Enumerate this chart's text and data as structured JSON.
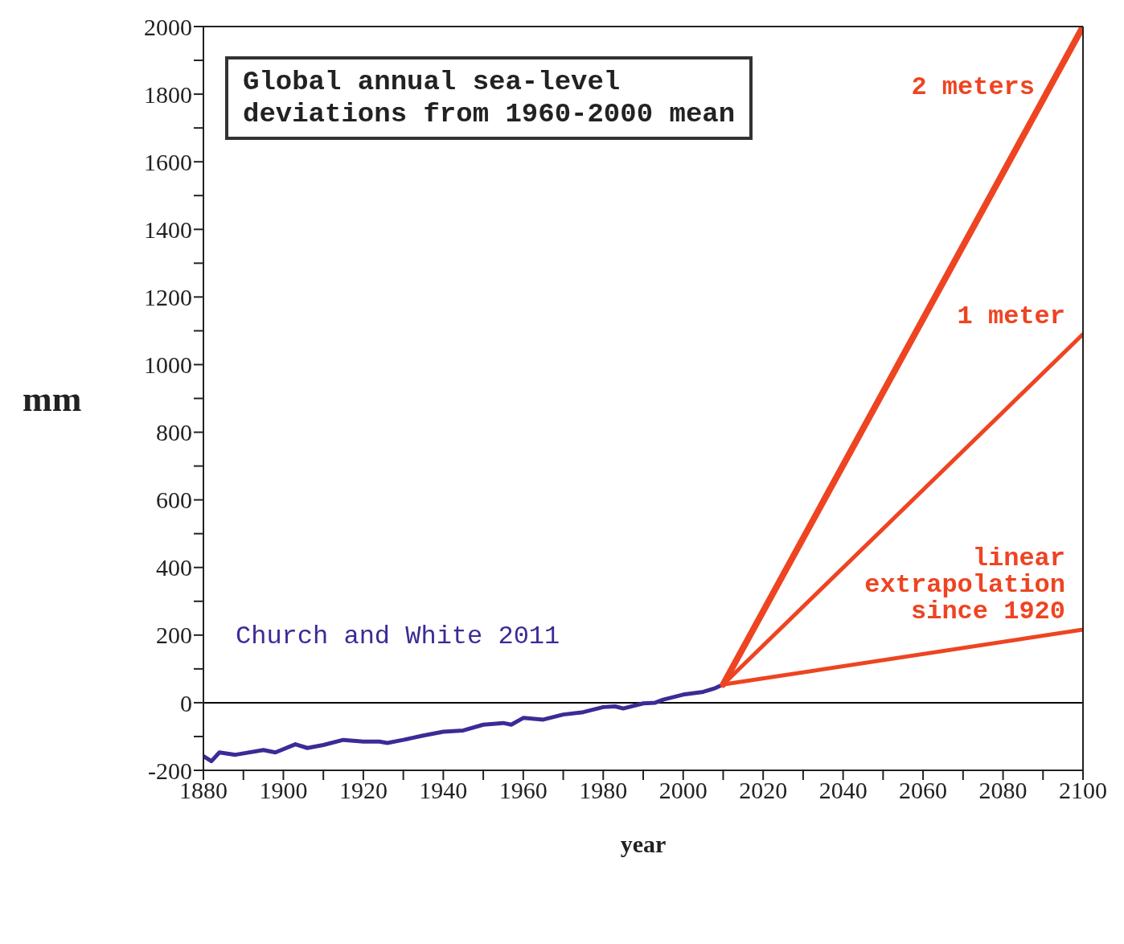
{
  "chart_data": {
    "type": "line",
    "title": "Global annual sea-level\ndeviations from 1960-2000 mean",
    "xlabel": "year",
    "ylabel": "mm",
    "xlim": [
      1880,
      2100
    ],
    "xticks": [
      1880,
      {
        "value": 1890,
        "label": null
      },
      1900,
      {
        "value": 1910,
        "label": null
      },
      1920,
      {
        "value": 1930,
        "label": null
      },
      1940,
      {
        "value": 1950,
        "label": null
      },
      1960,
      {
        "value": 1970,
        "label": null
      },
      1980,
      {
        "value": 1990,
        "label": null
      },
      2000,
      {
        "value": 2010,
        "label": null
      },
      2020,
      {
        "value": 2030,
        "label": null
      },
      2040,
      {
        "value": 2050,
        "label": null
      },
      2060,
      {
        "value": 2070,
        "label": null
      },
      2080,
      {
        "value": 2090,
        "label": null
      },
      2100
    ],
    "ylim": [
      -200,
      2000
    ],
    "yticks": [
      -200,
      {
        "value": -100,
        "label": null
      },
      0,
      {
        "value": 100,
        "label": null
      },
      200,
      {
        "value": 300,
        "label": null
      },
      400,
      {
        "value": 500,
        "label": null
      },
      600,
      {
        "value": 700,
        "label": null
      },
      800,
      {
        "value": 900,
        "label": null
      },
      1000,
      {
        "value": 1100,
        "label": null
      },
      1200,
      {
        "value": 1300,
        "label": null
      },
      1400,
      {
        "value": 1500,
        "label": null
      },
      1600,
      {
        "value": 1700,
        "label": null
      },
      1800,
      {
        "value": 1900,
        "label": null
      },
      2000
    ],
    "marker": "none",
    "line_style": "solid",
    "ref_lines": [
      {
        "axis": "y",
        "value": 0,
        "color": "#000000"
      }
    ],
    "series": [
      {
        "name": "Church and White 2011",
        "color": "#3d2a96",
        "x": [
          1880,
          1882,
          1884,
          1888,
          1895,
          1898,
          1903,
          1906,
          1910,
          1915,
          1920,
          1924,
          1926,
          1930,
          1935,
          1940,
          1945,
          1950,
          1955,
          1957,
          1960,
          1965,
          1970,
          1975,
          1980,
          1983,
          1985,
          1990,
          1993,
          1995,
          2000,
          2005,
          2008,
          2010
        ],
        "values": [
          -158,
          -173,
          -147,
          -154,
          -140,
          -147,
          -123,
          -134,
          -125,
          -110,
          -115,
          -115,
          -119,
          -110,
          -97,
          -86,
          -82,
          -65,
          -60,
          -65,
          -45,
          -50,
          -35,
          -28,
          -13,
          -11,
          -17,
          -2,
          0,
          9,
          24,
          32,
          43,
          54
        ]
      },
      {
        "name": "2 meters",
        "color": "#ee4422",
        "x": [
          2010,
          2100
        ],
        "values": [
          54,
          2000
        ]
      },
      {
        "name": "1 meter",
        "color": "#ee4422",
        "x": [
          2010,
          2100
        ],
        "values": [
          54,
          1090
        ]
      },
      {
        "name": "linear\nextrapolation\nsince 1920",
        "color": "#ee4422",
        "x": [
          2010,
          2100
        ],
        "values": [
          54,
          216
        ]
      }
    ]
  }
}
